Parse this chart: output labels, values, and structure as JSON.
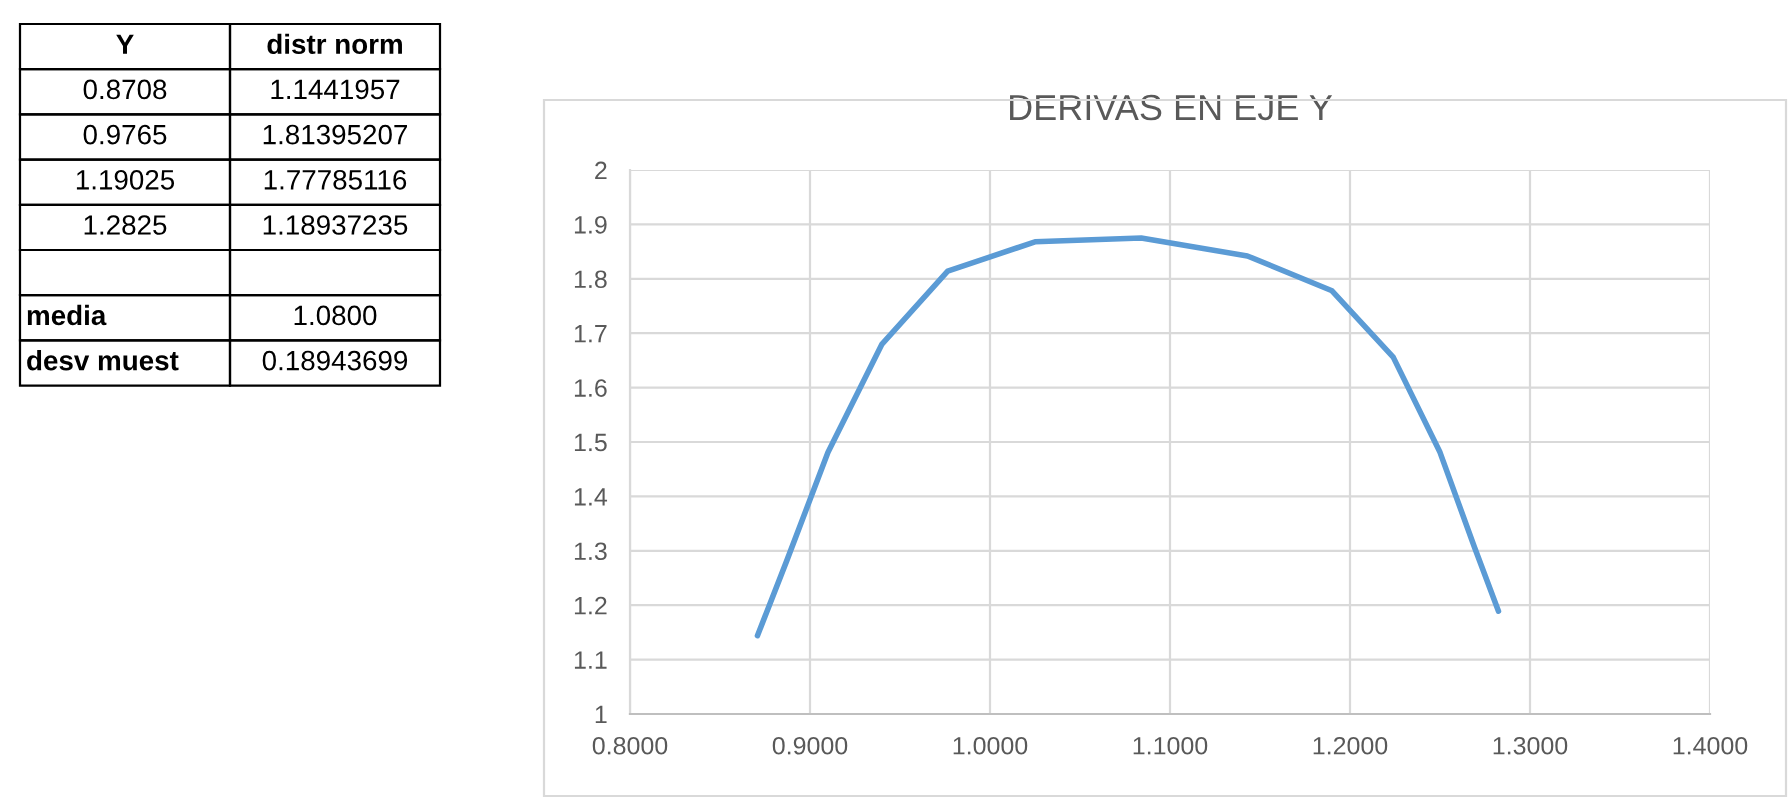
{
  "chart_data": {
    "type": "line",
    "title": "DERIVAS EN EJE Y",
    "x": [
      0.8708,
      0.887,
      0.91,
      0.94,
      0.9765,
      1.025,
      1.084,
      1.143,
      1.19,
      1.224,
      1.25,
      1.269,
      1.2825
    ],
    "series": [
      {
        "color": "#5b9bd5",
        "values": [
          1.144,
          1.281,
          1.481,
          1.68,
          1.814,
          1.868,
          1.875,
          1.842,
          1.778,
          1.656,
          1.481,
          1.308,
          1.189
        ]
      }
    ],
    "xlim": [
      0.8,
      1.4
    ],
    "xticks": [
      {
        "value": 0.8,
        "label": "0.8000"
      },
      {
        "value": 0.9,
        "label": "0.9000"
      },
      {
        "value": 1.0,
        "label": "1.0000"
      },
      {
        "value": 1.1,
        "label": "1.1000"
      },
      {
        "value": 1.2,
        "label": "1.2000"
      },
      {
        "value": 1.3,
        "label": "1.3000"
      },
      {
        "value": 1.4,
        "label": "1.4000"
      }
    ],
    "ylim": [
      1,
      2
    ],
    "yticks": [
      1,
      1.1,
      1.2,
      1.3,
      1.4,
      1.5,
      1.6,
      1.7,
      1.8,
      1.9,
      2
    ],
    "grid": true,
    "annotations": [
      "Y",
      "distr norm",
      "0.8708",
      "1.1441957",
      "0.9765",
      "1.81395207",
      "1.19025",
      "1.77785116",
      "1.2825",
      "1.18937235",
      "media",
      "1.0800",
      "desv muest",
      "0.18943699"
    ]
  }
}
